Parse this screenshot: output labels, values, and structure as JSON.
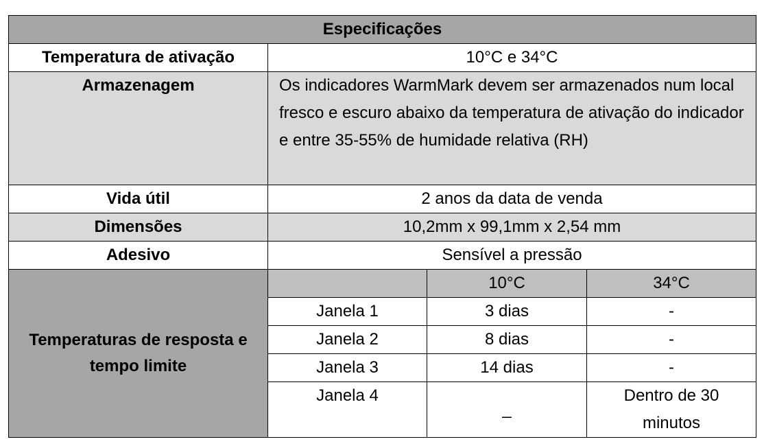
{
  "title": "Especificações",
  "specs": [
    {
      "label": "Temperatura de ativação",
      "value": "10°C e 34°C"
    },
    {
      "label": "Armazenagem",
      "value": "Os indicadores WarmMark devem ser armazenados num local fresco e escuro abaixo da temperatura de ativação do indicador e entre 35-55% de humidade relativa (RH)"
    },
    {
      "label": "Vida útil",
      "value": "2 anos da data de venda"
    },
    {
      "label": "Dimensões",
      "value": "10,2mm x 99,1mm x 2,54 mm"
    },
    {
      "label": "Adesivo",
      "value": "Sensível a pressão"
    }
  ],
  "response": {
    "label": "Temperaturas de resposta e tempo limite",
    "columns": [
      "10°C",
      "34°C"
    ],
    "rows": [
      [
        "Janela 1",
        "3 dias",
        "-"
      ],
      [
        "Janela 2",
        "8 dias",
        "-"
      ],
      [
        "Janela 3",
        "14 dias",
        "-"
      ],
      [
        "Janela 4",
        "_",
        "Dentro de 30 minutos"
      ]
    ]
  }
}
